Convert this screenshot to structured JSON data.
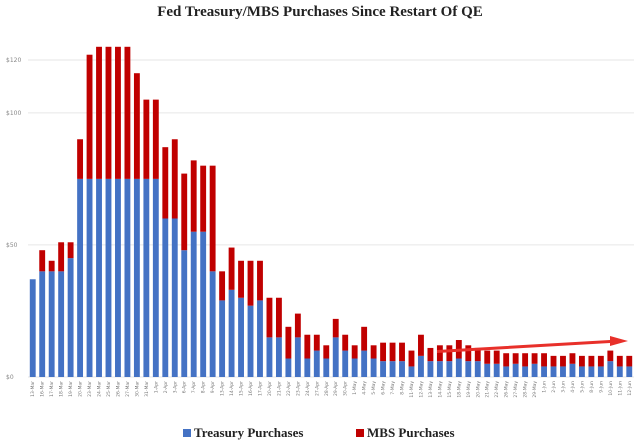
{
  "title": "Fed Treasury/MBS Purchases Since Restart Of QE",
  "colors": {
    "treasury": "#4472c4",
    "mbs": "#c00000",
    "arrow": "#e8302a",
    "grid": "#e6e6e6"
  },
  "chart_data": {
    "type": "bar",
    "stacked": true,
    "ylim": [
      0,
      120
    ],
    "yticks": [
      0,
      50,
      100,
      120
    ],
    "ytick_labels": [
      "$0",
      "$50",
      "$100",
      "$120"
    ],
    "grid": true,
    "legend_position": "bottom",
    "categories": [
      "13-Mar",
      "16-Mar",
      "17-Mar",
      "18-Mar",
      "19-Mar",
      "20-Mar",
      "23-Mar",
      "24-Mar",
      "25-Mar",
      "26-Mar",
      "27-Mar",
      "30-Mar",
      "31-Mar",
      "1-Apr",
      "2-Apr",
      "3-Apr",
      "6-Apr",
      "7-Apr",
      "8-Apr",
      "9-Apr",
      "13-Apr",
      "14-Apr",
      "15-Apr",
      "16-Apr",
      "17-Apr",
      "20-Apr",
      "21-Apr",
      "22-Apr",
      "23-Apr",
      "24-Apr",
      "27-Apr",
      "28-Apr",
      "29-Apr",
      "30-Apr",
      "1-May",
      "4-May",
      "5-May",
      "6-May",
      "7-May",
      "8-May",
      "11-May",
      "12-May",
      "13-May",
      "14-May",
      "15-May",
      "18-May",
      "19-May",
      "20-May",
      "21-May",
      "22-May",
      "26-May",
      "27-May",
      "28-May",
      "29-May",
      "1-Jun",
      "2-Jun",
      "3-Jun",
      "4-Jun",
      "5-Jun",
      "8-Jun",
      "9-Jun",
      "10-Jun",
      "11-Jun",
      "12-Jun"
    ],
    "series": [
      {
        "name": "Treasury Purchases",
        "values": [
          37,
          40,
          40,
          40,
          45,
          75,
          75,
          75,
          75,
          75,
          75,
          75,
          75,
          75,
          60,
          60,
          48,
          55,
          55,
          40,
          29,
          33,
          30,
          27,
          29,
          15,
          15,
          7,
          15,
          7,
          10,
          7,
          15,
          10,
          7,
          10,
          7,
          6,
          6,
          6,
          4,
          8,
          6,
          6,
          6,
          7,
          6,
          6,
          5,
          5,
          4,
          5,
          4,
          5,
          4,
          4,
          4,
          5,
          4,
          4,
          4,
          6,
          4,
          4
        ]
      },
      {
        "name": "MBS Purchases",
        "values": [
          0,
          8,
          4,
          11,
          6,
          15,
          47,
          50,
          50,
          50,
          50,
          40,
          30,
          30,
          27,
          30,
          29,
          27,
          25,
          40,
          11,
          16,
          14,
          17,
          15,
          15,
          15,
          12,
          9,
          9,
          6,
          5,
          7,
          6,
          5,
          9,
          5,
          7,
          7,
          7,
          6,
          8,
          5,
          6,
          6,
          7,
          6,
          5,
          5,
          5,
          5,
          4,
          5,
          4,
          5,
          4,
          4,
          4,
          4,
          4,
          4,
          4,
          4,
          4
        ]
      }
    ],
    "annotation": "upward-trend-arrow"
  },
  "legend": {
    "treasury_label": "Treasury Purchases",
    "mbs_label": "MBS Purchases"
  }
}
